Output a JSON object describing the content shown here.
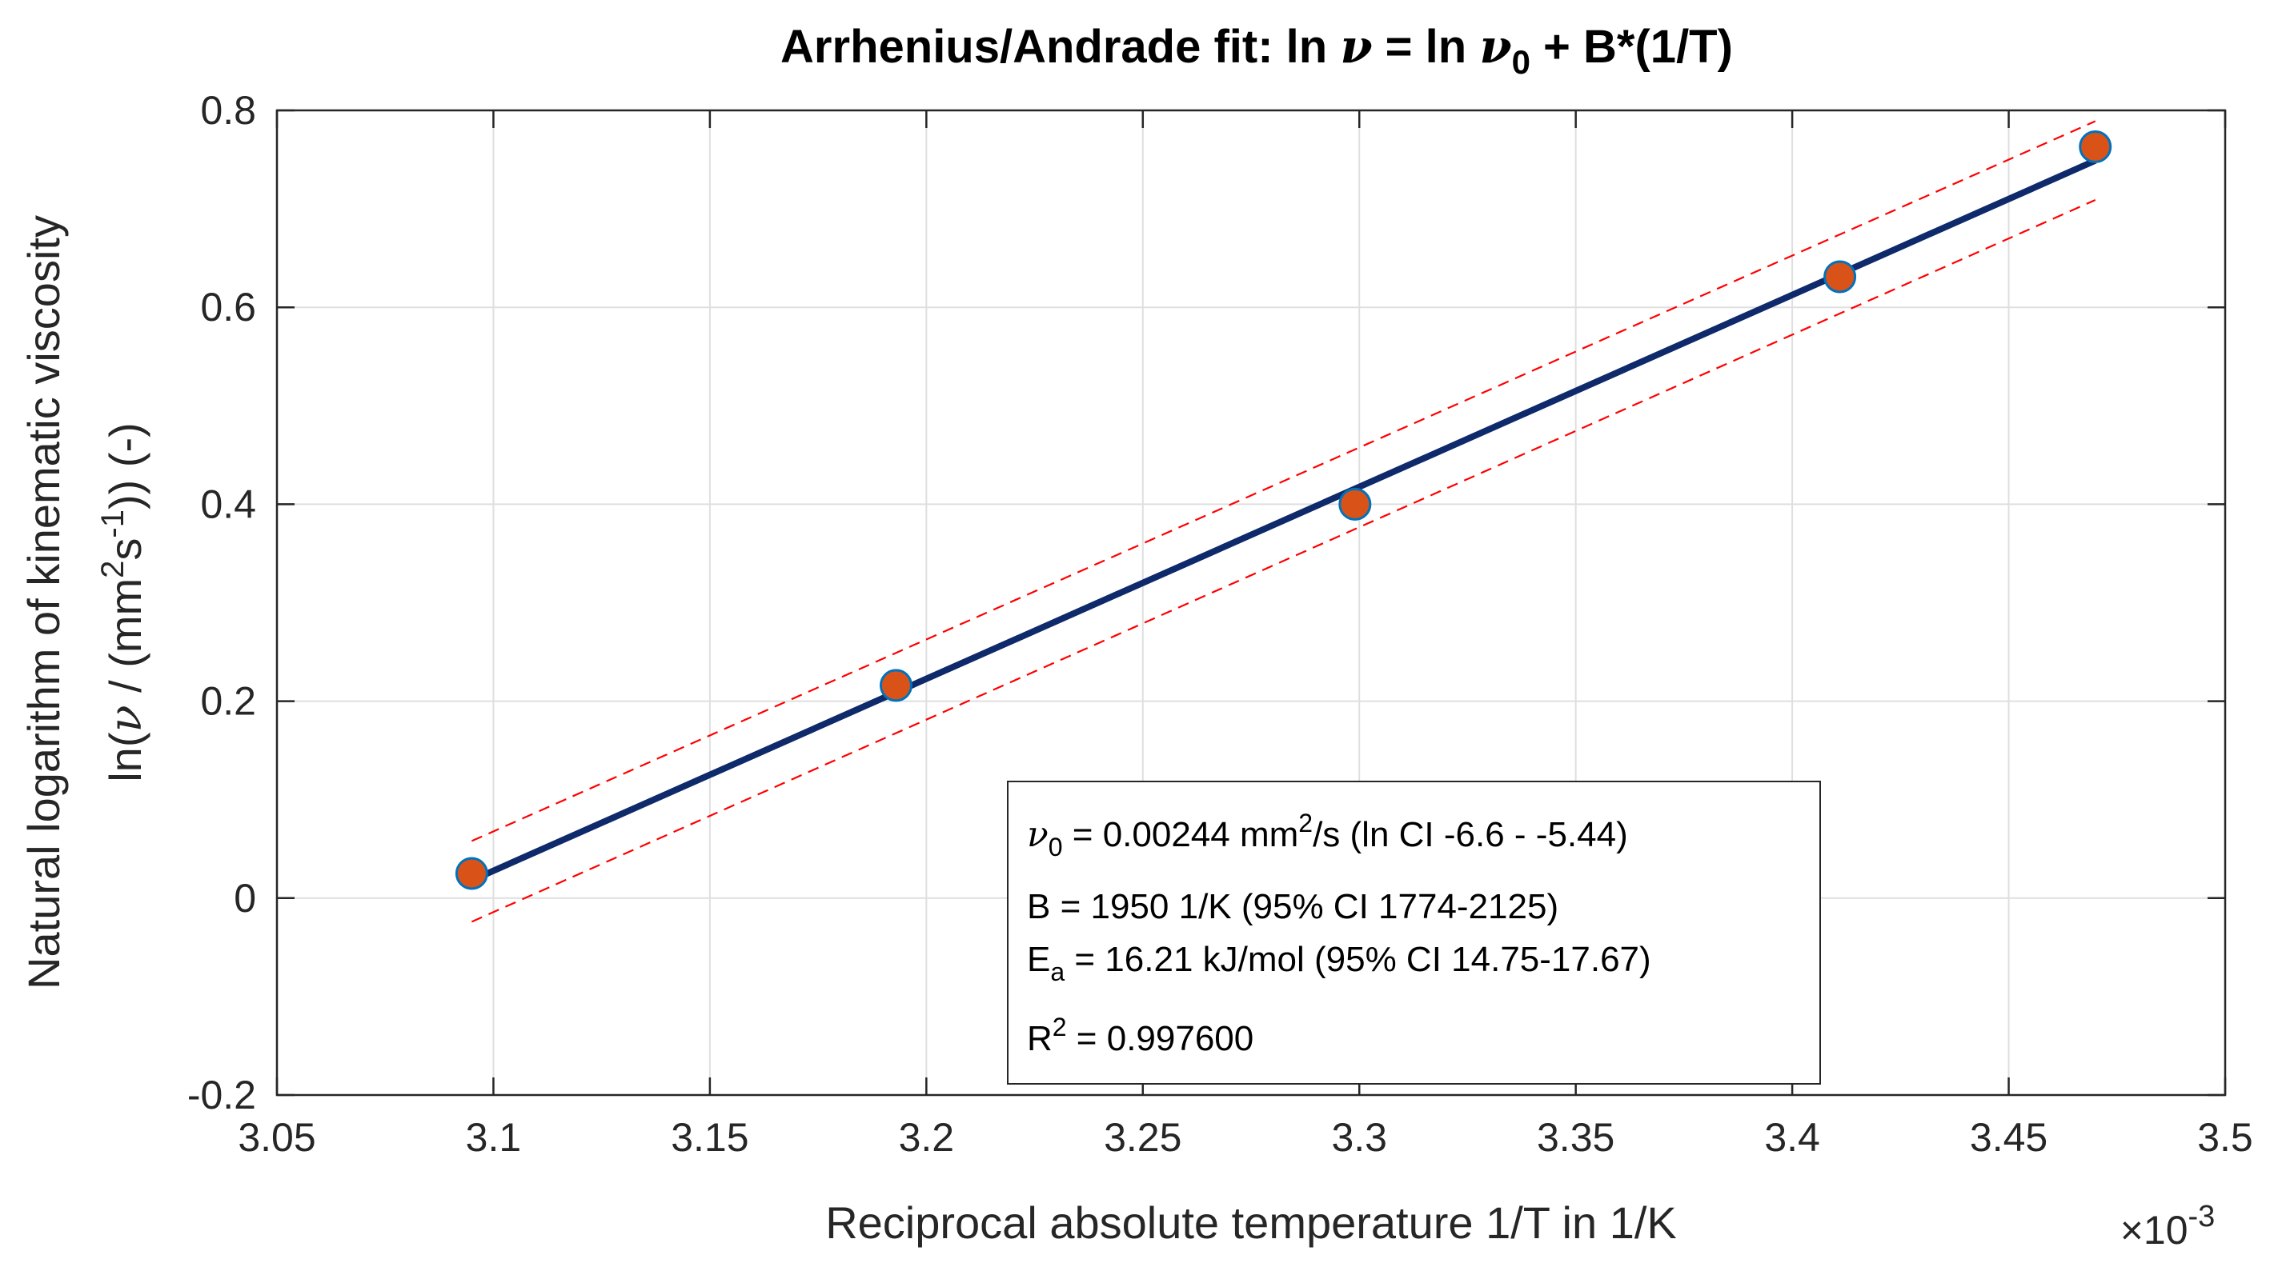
{
  "chart_data": {
    "type": "scatter",
    "title": {
      "prefix": "Arrhenius/Andrade fit: ln ",
      "nu": "ν",
      "eq": " = ln ",
      "nu0": "ν",
      "sub0": "0",
      "suffix": " + B*(1/T)"
    },
    "xlabel": "Reciprocal absolute temperature 1/T in 1/K",
    "ylabel_line1": "Natural logarithm of kinematic viscosity",
    "ylabel_line2": {
      "a": "ln(",
      "nu": "ν",
      "b": " / (mm",
      "sup2": "2",
      "c": "s",
      "supm1": "-1",
      "d": ")) (-)"
    },
    "x_exponent": {
      "base": "×10",
      "power": "-3"
    },
    "xlim": [
      3.05,
      3.5
    ],
    "ylim": [
      -0.2,
      0.8
    ],
    "x_scale": 0.001,
    "grid": true,
    "xticks": [
      3.05,
      3.1,
      3.15,
      3.2,
      3.25,
      3.3,
      3.35,
      3.4,
      3.45,
      3.5
    ],
    "xtick_labels": [
      "3.05",
      "3.1",
      "3.15",
      "3.2",
      "3.25",
      "3.3",
      "3.35",
      "3.4",
      "3.45",
      "3.5"
    ],
    "yticks": [
      -0.2,
      0,
      0.2,
      0.4,
      0.6,
      0.8
    ],
    "ytick_labels": [
      "-0.2",
      "0",
      "0.2",
      "0.4",
      "0.6",
      "0.8"
    ],
    "series": [
      {
        "role": "data",
        "x": [
          3.095,
          3.193,
          3.299,
          3.411,
          3.47
        ],
        "y": [
          0.025,
          0.216,
          0.4,
          0.631,
          0.763
        ]
      },
      {
        "role": "fit",
        "x": [
          3.095,
          3.47
        ],
        "y": [
          0.018,
          0.749
        ]
      },
      {
        "role": "ci_upper",
        "x": [
          3.095,
          3.47
        ],
        "y": [
          0.058,
          0.789
        ]
      },
      {
        "role": "ci_lower",
        "x": [
          3.095,
          3.47
        ],
        "y": [
          -0.024,
          0.709
        ]
      }
    ],
    "colors": {
      "marker_fill": "#D95319",
      "marker_edge": "#0072BD",
      "fit_line": "#0E2A6B",
      "ci_line": "#FF0000",
      "axis": "#262626",
      "grid": "#DFDFDF"
    },
    "annotation": {
      "location": "bottom-right",
      "line1": {
        "nu": "ν",
        "sub": "0",
        "text1": " = 0.00244 mm",
        "sup": "2",
        "text2": "/s (ln CI -6.6 - -5.44)"
      },
      "line2": "B = 1950 1/K (95% CI 1774-2125)",
      "line3": {
        "e": "E",
        "sub": "a",
        "text": " = 16.21 kJ/mol (95% CI 14.75-17.67)"
      },
      "line4": {
        "r": "R",
        "sup": "2",
        "text": " = 0.997600"
      }
    }
  }
}
